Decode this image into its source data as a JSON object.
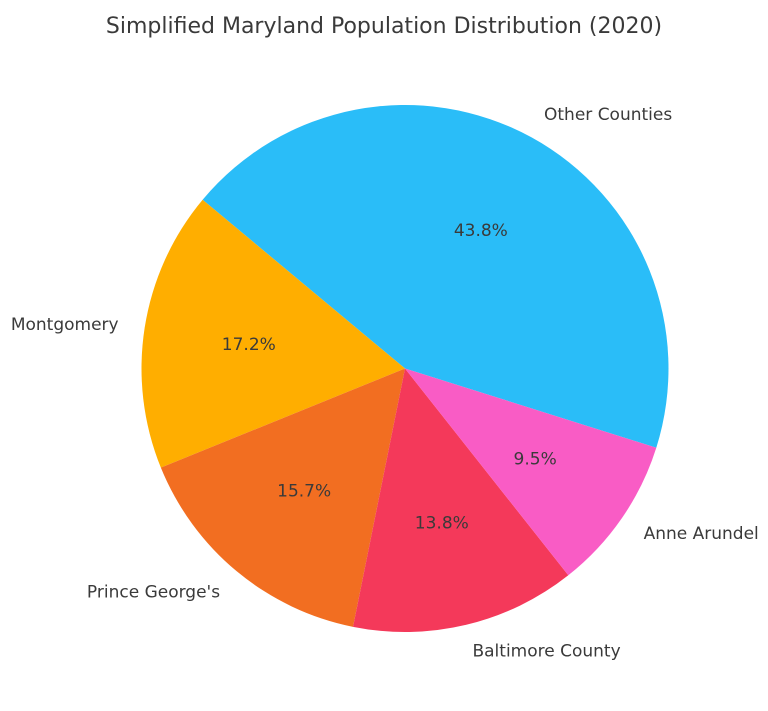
{
  "page": {
    "background_color": "#ffffff"
  },
  "chart_data": {
    "type": "pie",
    "title": "Simplified Maryland Population Distribution (2020)",
    "title_color": "#3a3a3a",
    "text_color": "#3a3a3a",
    "legend": "none",
    "grid": "off",
    "start_angle_deg": -17.5,
    "counterclockwise": true,
    "label_distance": 1.1,
    "pct_distance": 0.6,
    "slices": [
      {
        "label": "Other Counties",
        "value": 43.8,
        "pct_label": "43.8%",
        "color": "#2abdf8"
      },
      {
        "label": "Montgomery",
        "value": 17.2,
        "pct_label": "17.2%",
        "color": "#ffae00"
      },
      {
        "label": "Prince George's",
        "value": 15.7,
        "pct_label": "15.7%",
        "color": "#f26e21"
      },
      {
        "label": "Baltimore County",
        "value": 13.8,
        "pct_label": "13.8%",
        "color": "#f4395a"
      },
      {
        "label": "Anne Arundel",
        "value": 9.5,
        "pct_label": "9.5%",
        "color": "#f95cc5"
      }
    ]
  }
}
